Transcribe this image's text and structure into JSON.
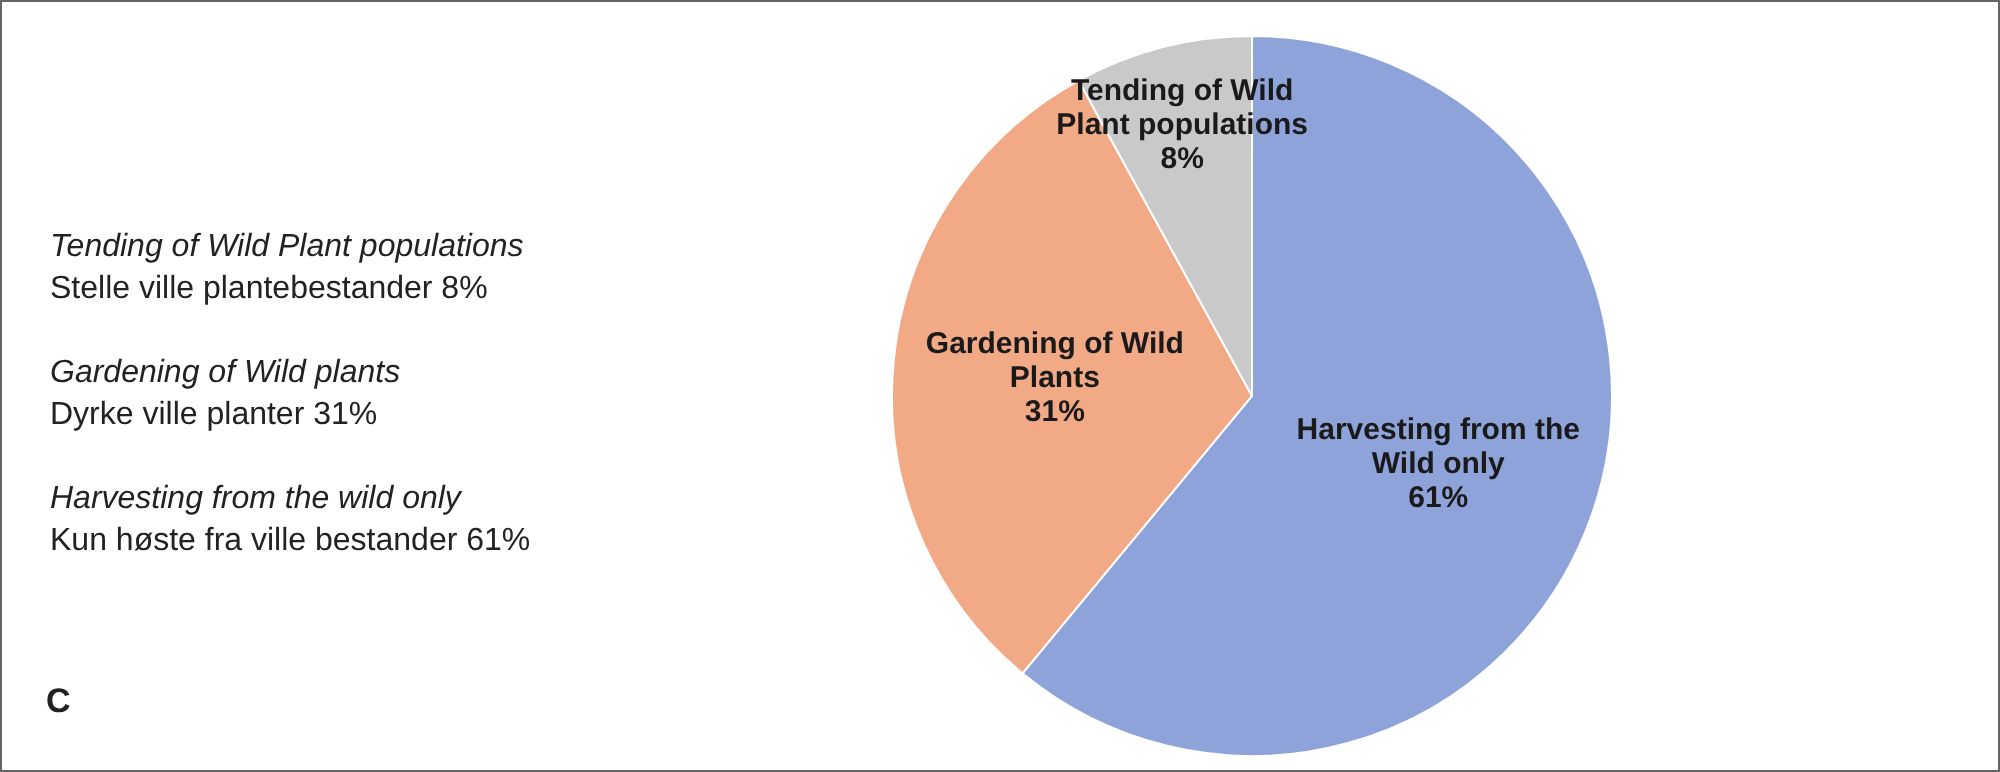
{
  "chart_data": {
    "type": "pie",
    "categories": [
      "Harvesting from the Wild only",
      "Gardening of Wild Plants",
      "Tending of Wild Plant populations"
    ],
    "values": [
      61,
      31,
      8
    ],
    "value_labels": [
      "61%",
      "31%",
      "8%"
    ],
    "colors": [
      "#8ea3d9",
      "#f2a986",
      "#c9c9c9"
    ],
    "legend": false,
    "annotations": [
      "Tending of Wild Plant populations",
      "Stelle ville plantebestander 8%",
      "Gardening of Wild plants",
      "Dyrke ville planter 31%",
      "Harvesting from the wild only",
      "Kun høste fra ville bestander 61%",
      "C"
    ]
  }
}
